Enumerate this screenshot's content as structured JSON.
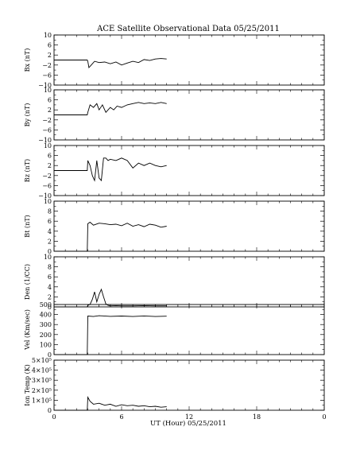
{
  "chart_data": {
    "type": "line",
    "title": "ACE Satellite Observational Data   05/25/2011",
    "xlabel": "UT (Hour)   05/25/2011",
    "xlim": [
      0,
      24
    ],
    "xticks": [
      "0",
      "6",
      "12",
      "18",
      "0"
    ],
    "grid": false,
    "panels": [
      {
        "name": "Bx",
        "ylabel": "Bx (nT)",
        "ylim": [
          -10,
          10
        ],
        "yticks": [
          "10",
          "6",
          "2",
          "−2",
          "−6",
          "−10"
        ],
        "x": [
          0,
          2.95,
          3.0,
          3.1,
          3.3,
          3.6,
          4.0,
          4.5,
          5.0,
          5.5,
          6.0,
          6.5,
          7.0,
          7.5,
          8.0,
          8.5,
          9.0,
          9.5,
          10.0
        ],
        "y": [
          0,
          0,
          -0.5,
          -3.0,
          -2.0,
          -0.5,
          -1.0,
          -0.8,
          -1.5,
          -0.8,
          -2.0,
          -1.2,
          -0.5,
          -1.0,
          0.2,
          -0.2,
          0.4,
          0.6,
          0.4
        ]
      },
      {
        "name": "By",
        "ylabel": "By (nT)",
        "ylim": [
          -10,
          10
        ],
        "yticks": [
          "10",
          "6",
          "2",
          "−2",
          "−6",
          "−10"
        ],
        "x": [
          0,
          2.95,
          3.0,
          3.2,
          3.5,
          3.8,
          4.0,
          4.3,
          4.6,
          5.0,
          5.3,
          5.6,
          6.0,
          6.5,
          7.0,
          7.5,
          8.0,
          8.5,
          9.0,
          9.5,
          10.0
        ],
        "y": [
          0,
          0,
          1.0,
          4.0,
          3.0,
          4.5,
          2.0,
          4.0,
          1.0,
          3.0,
          2.0,
          3.5,
          3.0,
          4.0,
          4.5,
          5.0,
          4.5,
          4.8,
          4.5,
          5.0,
          4.5
        ]
      },
      {
        "name": "Bz",
        "ylabel": "Bz (nT)",
        "ylim": [
          -10,
          10
        ],
        "yticks": [
          "10",
          "6",
          "2",
          "−2",
          "−6",
          "−10"
        ],
        "x": [
          0,
          2.95,
          3.0,
          3.2,
          3.4,
          3.6,
          3.8,
          4.0,
          4.2,
          4.4,
          4.6,
          4.8,
          5.0,
          5.5,
          6.0,
          6.5,
          7.0,
          7.5,
          8.0,
          8.5,
          9.0,
          9.5,
          10.0
        ],
        "y": [
          0,
          0,
          4.0,
          2.0,
          -2.0,
          -4.0,
          4.0,
          -3.0,
          -4.0,
          5.0,
          5.0,
          4.0,
          4.5,
          4.0,
          5.0,
          4.0,
          1.0,
          3.0,
          2.0,
          3.0,
          2.0,
          1.5,
          2.0
        ]
      },
      {
        "name": "Bt",
        "ylabel": "Bt (nT)",
        "ylim": [
          0,
          10
        ],
        "yticks": [
          "10",
          "8",
          "6",
          "4",
          "2",
          "0"
        ],
        "x": [
          0,
          2.95,
          3.0,
          3.2,
          3.5,
          4.0,
          4.5,
          5.0,
          5.5,
          6.0,
          6.5,
          7.0,
          7.5,
          8.0,
          8.5,
          9.0,
          9.5,
          10.0
        ],
        "y": [
          0,
          0,
          5.5,
          5.8,
          5.2,
          5.6,
          5.5,
          5.3,
          5.4,
          5.1,
          5.6,
          5.0,
          5.3,
          4.9,
          5.4,
          5.2,
          4.8,
          5.0
        ]
      },
      {
        "name": "Density",
        "ylabel": "Den (1/CC)",
        "ylim": [
          0,
          10
        ],
        "yticks": [
          "10",
          "8",
          "6",
          "4",
          "2",
          "0"
        ],
        "x": [
          0,
          2.95,
          3.0,
          3.2,
          3.4,
          3.6,
          3.8,
          4.0,
          4.2,
          4.4,
          4.6,
          4.8,
          5.0,
          5.5,
          6.0,
          7.0,
          8.0,
          9.0,
          10.0
        ],
        "y": [
          0,
          0,
          0.3,
          0.5,
          1.5,
          3.0,
          1.0,
          2.5,
          3.5,
          2.0,
          0.6,
          0.3,
          0.2,
          0.25,
          0.2,
          0.2,
          0.25,
          0.2,
          0.2
        ]
      },
      {
        "name": "Velocity",
        "ylabel": "Vel (Km/sec)",
        "ylim": [
          0,
          500
        ],
        "yticks": [
          "500",
          "400",
          "300",
          "200",
          "100",
          "0"
        ],
        "x": [
          0,
          2.95,
          3.0,
          3.5,
          4.0,
          5.0,
          6.0,
          7.0,
          8.0,
          9.0,
          10.0
        ],
        "y": [
          0,
          0,
          385,
          380,
          388,
          382,
          385,
          380,
          386,
          380,
          383
        ]
      },
      {
        "name": "Ion Temp",
        "ylabel": "Ion Temp (K)",
        "ylim": [
          0,
          500000
        ],
        "yticks": [
          "5×10⁵",
          "4×10⁵",
          "3×10⁵",
          "2×10⁵",
          "1×10⁵",
          "0"
        ],
        "x": [
          0,
          2.95,
          3.0,
          3.2,
          3.5,
          4.0,
          4.5,
          5.0,
          5.5,
          6.0,
          6.5,
          7.0,
          7.5,
          8.0,
          8.5,
          9.0,
          9.5,
          10.0
        ],
        "y": [
          0,
          0,
          130000,
          90000,
          60000,
          70000,
          50000,
          60000,
          40000,
          55000,
          45000,
          50000,
          40000,
          45000,
          35000,
          40000,
          30000,
          35000
        ]
      }
    ]
  }
}
